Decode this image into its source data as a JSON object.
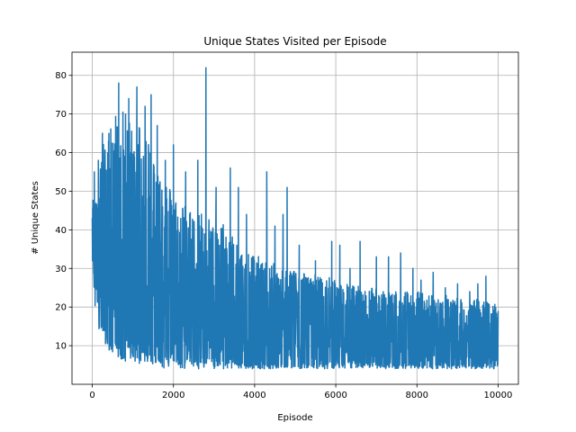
{
  "chart_data": {
    "type": "line",
    "title": "Unique States Visited per Episode",
    "xlabel": "Episode",
    "ylabel": "# Unique States",
    "xlim": [
      -500,
      10500
    ],
    "ylim": [
      0,
      86
    ],
    "xticks": [
      0,
      2000,
      4000,
      6000,
      8000,
      10000
    ],
    "yticks": [
      10,
      20,
      30,
      40,
      50,
      60,
      70,
      80
    ],
    "grid": true,
    "series": [
      {
        "color": "#1f77b4",
        "x_start": 0,
        "x_end": 10000,
        "envelope": {
          "x": [
            0,
            100,
            200,
            400,
            600,
            800,
            1000,
            1200,
            1400,
            1600,
            1800,
            2000,
            2400,
            2800,
            3200,
            3600,
            4000,
            4400,
            4800,
            5200,
            5600,
            6000,
            6400,
            6800,
            7200,
            7600,
            8000,
            8400,
            8800,
            9200,
            9600,
            10000
          ],
          "high": [
            45,
            52,
            58,
            63,
            68,
            67,
            66,
            65,
            61,
            55,
            51,
            47,
            44,
            42,
            40,
            36,
            32,
            30,
            29,
            28,
            27,
            26,
            25,
            24,
            24,
            23,
            23,
            22,
            22,
            21,
            21,
            20
          ],
          "low": [
            30,
            22,
            17,
            12,
            10,
            9,
            9,
            8,
            8,
            7,
            7,
            6,
            6,
            6,
            6,
            5,
            5,
            5,
            5,
            5,
            5,
            5,
            5,
            5,
            5,
            5,
            5,
            5,
            5,
            5,
            5,
            5
          ],
          "floor": [
            25,
            15,
            13,
            9,
            7,
            6,
            6,
            5,
            5,
            5,
            4,
            4,
            4,
            4,
            4,
            4,
            4,
            4,
            4,
            4,
            4,
            4,
            4,
            4,
            4,
            4,
            4,
            4,
            4,
            4,
            4,
            4
          ]
        },
        "peaks": [
          {
            "x": 0,
            "y": 43
          },
          {
            "x": 50,
            "y": 55
          },
          {
            "x": 150,
            "y": 58
          },
          {
            "x": 250,
            "y": 65
          },
          {
            "x": 400,
            "y": 63
          },
          {
            "x": 650,
            "y": 78
          },
          {
            "x": 900,
            "y": 74
          },
          {
            "x": 1100,
            "y": 77
          },
          {
            "x": 1300,
            "y": 72
          },
          {
            "x": 1450,
            "y": 75
          },
          {
            "x": 1600,
            "y": 67
          },
          {
            "x": 1800,
            "y": 58
          },
          {
            "x": 2000,
            "y": 62
          },
          {
            "x": 2300,
            "y": 55
          },
          {
            "x": 2600,
            "y": 58
          },
          {
            "x": 2800,
            "y": 82
          },
          {
            "x": 3050,
            "y": 51
          },
          {
            "x": 3400,
            "y": 56
          },
          {
            "x": 3600,
            "y": 51
          },
          {
            "x": 3800,
            "y": 44
          },
          {
            "x": 4300,
            "y": 55
          },
          {
            "x": 4500,
            "y": 41
          },
          {
            "x": 4700,
            "y": 44
          },
          {
            "x": 4800,
            "y": 51
          },
          {
            "x": 5100,
            "y": 36
          },
          {
            "x": 5500,
            "y": 32
          },
          {
            "x": 5900,
            "y": 37
          },
          {
            "x": 6100,
            "y": 36
          },
          {
            "x": 6350,
            "y": 30
          },
          {
            "x": 6600,
            "y": 37
          },
          {
            "x": 7000,
            "y": 33
          },
          {
            "x": 7300,
            "y": 33
          },
          {
            "x": 7600,
            "y": 34
          },
          {
            "x": 7900,
            "y": 30
          },
          {
            "x": 8100,
            "y": 27
          },
          {
            "x": 8400,
            "y": 29
          },
          {
            "x": 8700,
            "y": 25
          },
          {
            "x": 9000,
            "y": 26
          },
          {
            "x": 9300,
            "y": 24
          },
          {
            "x": 9500,
            "y": 26
          },
          {
            "x": 9700,
            "y": 28
          },
          {
            "x": 10000,
            "y": 19
          }
        ]
      }
    ]
  }
}
